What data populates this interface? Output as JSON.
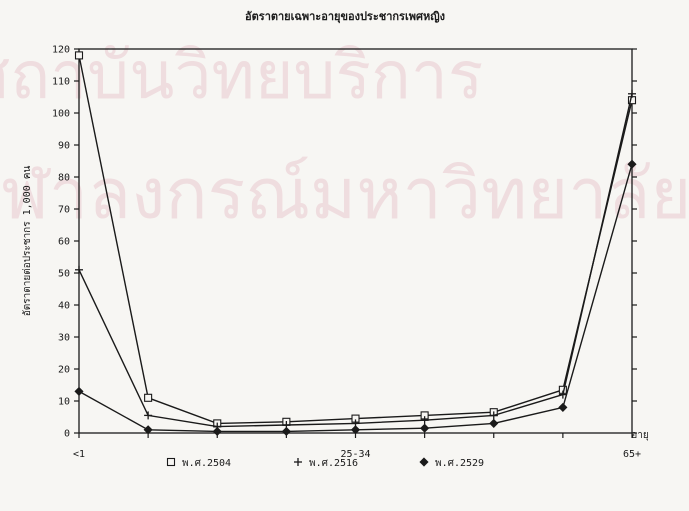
{
  "watermark": {
    "line1": "สถาบันวิทยบริการ",
    "line2": "จุฬาลงกรณ์มหาวิทยาลัย"
  },
  "chart_data": {
    "type": "line",
    "title": "อัตราตายเฉพาะอายุของประชากรเพศหญิง",
    "xlabel": "อายุ",
    "ylabel": "อัตราตายต่อประชากร 1,000 คน",
    "ylim": [
      0,
      120
    ],
    "yticks": [
      0,
      10,
      20,
      30,
      40,
      50,
      60,
      70,
      80,
      90,
      100,
      110,
      120
    ],
    "x_tick_labels": [
      "<1",
      "25-34",
      "65+"
    ],
    "x_tick_positions": [
      0,
      4,
      8
    ],
    "grid": false,
    "legend_position": "bottom",
    "series": [
      {
        "name": "พ.ศ.2504",
        "marker": "square",
        "x": [
          0,
          1,
          2,
          3,
          4,
          5,
          6,
          7,
          8
        ],
        "values": [
          118,
          11,
          3,
          3.5,
          4.5,
          5.5,
          6.5,
          13.5,
          104
        ]
      },
      {
        "name": "พ.ศ.2516",
        "marker": "plus",
        "x": [
          0,
          1,
          2,
          3,
          4,
          5,
          6,
          7,
          8
        ],
        "values": [
          51,
          5.5,
          2,
          2.5,
          3,
          4,
          5.5,
          12,
          106
        ]
      },
      {
        "name": "พ.ศ.2529",
        "marker": "diamond",
        "x": [
          0,
          1,
          2,
          3,
          4,
          5,
          6,
          7,
          8
        ],
        "values": [
          13,
          1,
          0.5,
          0.5,
          1,
          1.5,
          3,
          8,
          84
        ]
      }
    ]
  }
}
